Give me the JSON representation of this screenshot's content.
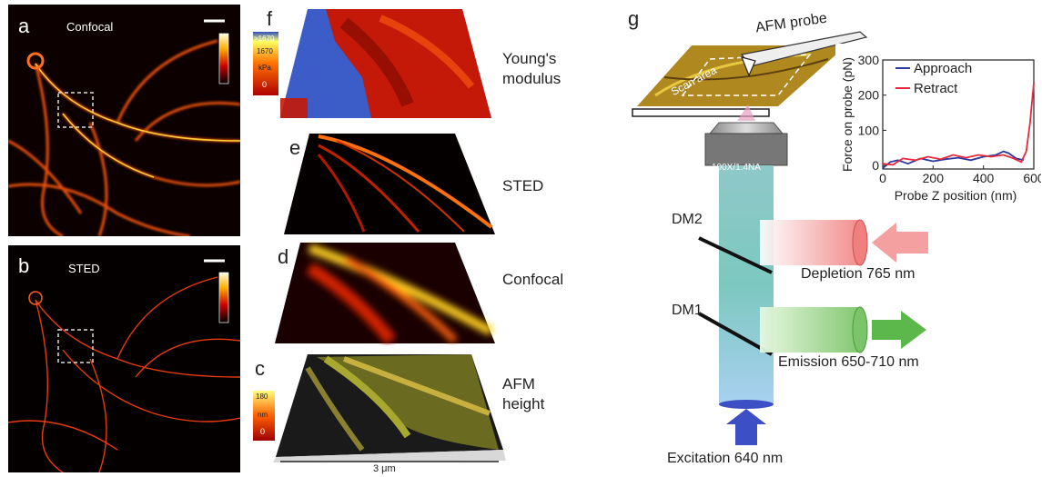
{
  "panels": {
    "a": {
      "letter": "a",
      "title": "Confocal"
    },
    "b": {
      "letter": "b",
      "title": "STED"
    },
    "f": {
      "letter": "f",
      "label_line1": "Young's",
      "label_line2": "modulus",
      "colorbar": {
        "max": ">1670",
        "mid": "1670",
        "unit": "kPa",
        "min": "0"
      }
    },
    "e": {
      "letter": "e",
      "label": "STED"
    },
    "d": {
      "letter": "d",
      "label": "Confocal"
    },
    "c": {
      "letter": "c",
      "label_line1": "AFM",
      "label_line2": "height",
      "colorbar": {
        "max": "180",
        "unit": "nm",
        "min": "0"
      },
      "scale_text": "3 μm"
    },
    "g": {
      "letter": "g",
      "afm_probe": "AFM probe",
      "scan_area": "Scan area",
      "objective": "100X/1.4NA",
      "dm2": "DM2",
      "dm1": "DM1",
      "depletion": "Depletion 765 nm",
      "emission": "Emission 650-710 nm",
      "excitation": "Excitation 640  nm"
    }
  },
  "colors": {
    "approach": "#2b3aa0",
    "retract": "#e8283c",
    "depletion": "#f08a8a",
    "emission": "#7cc46a",
    "excitation": "#3c4fc4",
    "beam": "#8fd0cf"
  },
  "chart_data": {
    "type": "line",
    "xlabel": "Probe Z position (nm)",
    "ylabel": "Force on probe  (pN)",
    "xlim": [
      0,
      600
    ],
    "ylim": [
      -10,
      300
    ],
    "xticks": [
      0,
      200,
      400,
      600
    ],
    "yticks": [
      0,
      100,
      200,
      300
    ],
    "legend_position": "top-right",
    "series": [
      {
        "name": "Approach",
        "x": [
          0,
          30,
          60,
          100,
          150,
          200,
          250,
          300,
          350,
          400,
          450,
          480,
          500,
          530,
          560
        ],
        "y": [
          -8,
          10,
          15,
          5,
          20,
          12,
          18,
          22,
          15,
          25,
          30,
          40,
          35,
          20,
          15
        ]
      },
      {
        "name": "Retract",
        "x": [
          0,
          40,
          80,
          130,
          180,
          230,
          280,
          330,
          380,
          430,
          480,
          520,
          550,
          570,
          585,
          600
        ],
        "y": [
          5,
          2,
          20,
          15,
          25,
          18,
          30,
          22,
          30,
          25,
          30,
          20,
          10,
          40,
          120,
          235
        ]
      }
    ]
  }
}
